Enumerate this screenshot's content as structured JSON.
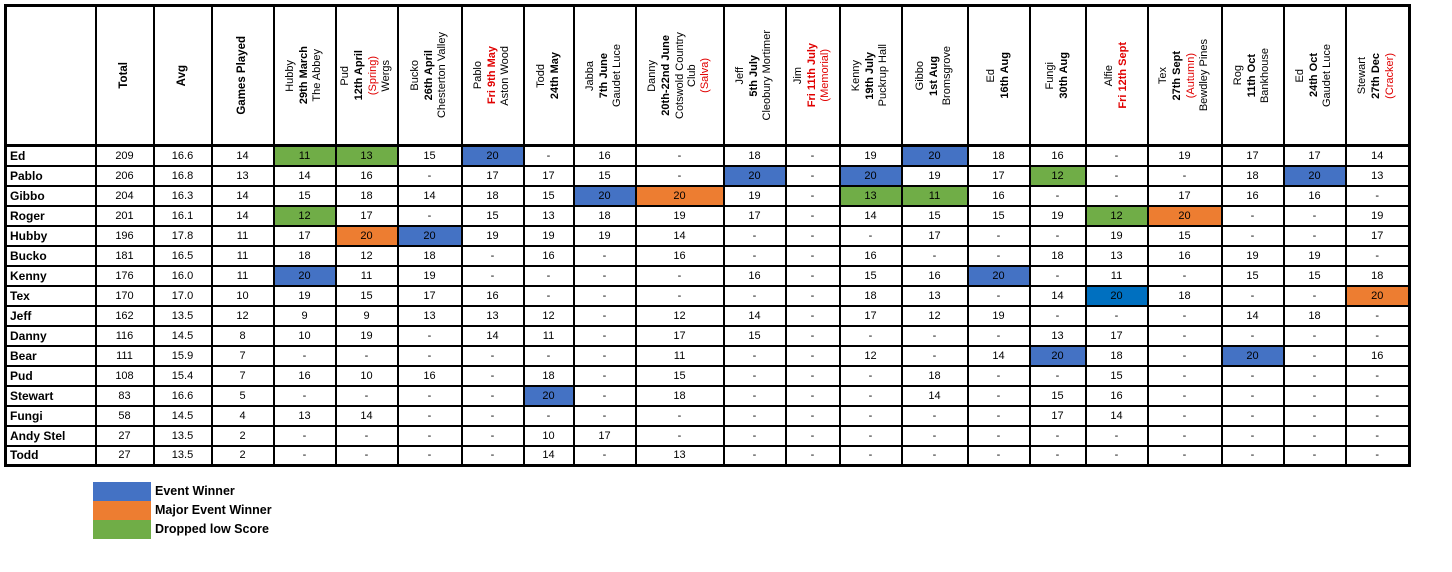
{
  "colors": {
    "blue": "#4472C4",
    "orange": "#ED7D31",
    "green": "#70AD47",
    "bright_blue": "#0070C0",
    "red_text": "#E00000",
    "border": "#000000"
  },
  "table": {
    "corner_label": "",
    "stat_headers": [
      "Total",
      "Avg",
      "Games Played"
    ],
    "event_columns": [
      {
        "lines": [
          {
            "t": "Hubby",
            "s": "name"
          },
          {
            "t": "29th March",
            "s": "date"
          },
          {
            "t": "The Abbey",
            "s": "venue"
          }
        ]
      },
      {
        "lines": [
          {
            "t": "Pud",
            "s": "name"
          },
          {
            "t": "12th April",
            "s": "date"
          },
          {
            "t": "(Spring)",
            "s": "tag"
          },
          {
            "t": "Wergs",
            "s": "venue"
          }
        ]
      },
      {
        "lines": [
          {
            "t": "Bucko",
            "s": "name"
          },
          {
            "t": "26th April",
            "s": "date"
          },
          {
            "t": "Chesterton Valley",
            "s": "venue"
          }
        ]
      },
      {
        "lines": [
          {
            "t": "Pablo",
            "s": "name"
          },
          {
            "t": "Fri 9th May",
            "s": "dateRed"
          },
          {
            "t": "Aston Wood",
            "s": "venue"
          }
        ]
      },
      {
        "lines": [
          {
            "t": "Todd",
            "s": "name"
          },
          {
            "t": "24th May",
            "s": "date"
          }
        ]
      },
      {
        "lines": [
          {
            "t": "Jabba",
            "s": "name"
          },
          {
            "t": "7th June",
            "s": "date"
          },
          {
            "t": "Gaudet Luce",
            "s": "venue"
          }
        ]
      },
      {
        "lines": [
          {
            "t": "Danny",
            "s": "name"
          },
          {
            "t": "20th-22nd June",
            "s": "date"
          },
          {
            "t": "Cotswold Country Club",
            "s": "venue"
          },
          {
            "t": "(Salva)",
            "s": "tag"
          }
        ],
        "wide": true
      },
      {
        "lines": [
          {
            "t": "Jeff",
            "s": "name"
          },
          {
            "t": "5th July",
            "s": "date"
          },
          {
            "t": "Cleobury Mortimer",
            "s": "venue"
          }
        ]
      },
      {
        "lines": [
          {
            "t": "Jim",
            "s": "name"
          },
          {
            "t": "Fri 11th July",
            "s": "dateRed"
          },
          {
            "t": "(Memorial)",
            "s": "tag"
          }
        ]
      },
      {
        "lines": [
          {
            "t": "Kenny",
            "s": "name"
          },
          {
            "t": "19th July",
            "s": "date"
          },
          {
            "t": "Puckrup Hall",
            "s": "venue"
          }
        ]
      },
      {
        "lines": [
          {
            "t": "Gibbo",
            "s": "name"
          },
          {
            "t": "1st Aug",
            "s": "date"
          },
          {
            "t": "Bromsgrove",
            "s": "venue"
          }
        ]
      },
      {
        "lines": [
          {
            "t": "Ed",
            "s": "name"
          },
          {
            "t": "16th Aug",
            "s": "date"
          }
        ]
      },
      {
        "lines": [
          {
            "t": "Fungi",
            "s": "name"
          },
          {
            "t": "30th Aug",
            "s": "date"
          }
        ]
      },
      {
        "lines": [
          {
            "t": "Alfie",
            "s": "name"
          },
          {
            "t": "Fri 12th Sept",
            "s": "dateRed"
          }
        ]
      },
      {
        "lines": [
          {
            "t": "Tex",
            "s": "name"
          },
          {
            "t": "27th Sept",
            "s": "date"
          },
          {
            "t": "(Autumn)",
            "s": "tag"
          },
          {
            "t": "Bewdley Pines",
            "s": "venue"
          }
        ]
      },
      {
        "lines": [
          {
            "t": "Rog",
            "s": "name"
          },
          {
            "t": "11th Oct",
            "s": "date"
          },
          {
            "t": "Bankhouse",
            "s": "venue"
          }
        ]
      },
      {
        "lines": [
          {
            "t": "Ed",
            "s": "name"
          },
          {
            "t": "24th Oct",
            "s": "date"
          },
          {
            "t": "Gaudet Luce",
            "s": "venue"
          }
        ]
      },
      {
        "lines": [
          {
            "t": "Stewart",
            "s": "name"
          },
          {
            "t": "27th Dec",
            "s": "date"
          },
          {
            "t": "(Cracker)",
            "s": "tag"
          }
        ]
      }
    ],
    "highlight_codes": {
      "w": "blue",
      "m": "orange",
      "d": "green",
      "wb": "bright_blue"
    },
    "rows": [
      {
        "player": "Ed",
        "total": "209",
        "avg": "16.6",
        "played": "14",
        "scores": [
          "11|d",
          "13|d",
          "15",
          "20|w",
          "-",
          "16",
          "-",
          "18",
          "-",
          "19",
          "20|w",
          "18",
          "16",
          "-",
          "19",
          "17",
          "17",
          "14"
        ]
      },
      {
        "player": "Pablo",
        "total": "206",
        "avg": "16.8",
        "played": "13",
        "scores": [
          "14",
          "16",
          "-",
          "17",
          "17",
          "15",
          "-",
          "20|w",
          "-",
          "20|w",
          "19",
          "17",
          "12|d",
          "-",
          "-",
          "18",
          "20|w",
          "13"
        ]
      },
      {
        "player": "Gibbo",
        "total": "204",
        "avg": "16.3",
        "played": "14",
        "scores": [
          "15",
          "18",
          "14",
          "18",
          "15",
          "20|w",
          "20|m",
          "19",
          "-",
          "13|d",
          "11|d",
          "16",
          "-",
          "-",
          "17",
          "16",
          "16",
          "-"
        ]
      },
      {
        "player": "Roger",
        "total": "201",
        "avg": "16.1",
        "played": "14",
        "scores": [
          "12|d",
          "17",
          "-",
          "15",
          "13",
          "18",
          "19",
          "17",
          "-",
          "14",
          "15",
          "15",
          "19",
          "12|d",
          "20|m",
          "-",
          "-",
          "19"
        ]
      },
      {
        "player": "Hubby",
        "total": "196",
        "avg": "17.8",
        "played": "11",
        "scores": [
          "17",
          "20|m",
          "20|w",
          "19",
          "19",
          "19",
          "14",
          "-",
          "-",
          "-",
          "17",
          "-",
          "-",
          "19",
          "15",
          "-",
          "-",
          "17"
        ]
      },
      {
        "player": "Bucko",
        "total": "181",
        "avg": "16.5",
        "played": "11",
        "scores": [
          "18",
          "12",
          "18",
          "-",
          "16",
          "-",
          "16",
          "-",
          "-",
          "16",
          "-",
          "-",
          "18",
          "13",
          "16",
          "19",
          "19",
          "-"
        ]
      },
      {
        "player": "Kenny",
        "total": "176",
        "avg": "16.0",
        "played": "11",
        "scores": [
          "20|w",
          "11",
          "19",
          "-",
          "-",
          "-",
          "-",
          "16",
          "-",
          "15",
          "16",
          "20|w",
          "-",
          "11",
          "-",
          "15",
          "15",
          "18"
        ]
      },
      {
        "player": "Tex",
        "total": "170",
        "avg": "17.0",
        "played": "10",
        "scores": [
          "19",
          "15",
          "17",
          "16",
          "-",
          "-",
          "-",
          "-",
          "-",
          "18",
          "13",
          "-",
          "14",
          "20|wb",
          "18",
          "-",
          "-",
          "20|m"
        ]
      },
      {
        "player": "Jeff",
        "total": "162",
        "avg": "13.5",
        "played": "12",
        "scores": [
          "9",
          "9",
          "13",
          "13",
          "12",
          "-",
          "12",
          "14",
          "-",
          "17",
          "12",
          "19",
          "-",
          "-",
          "-",
          "14",
          "18",
          "-"
        ]
      },
      {
        "player": "Danny",
        "total": "116",
        "avg": "14.5",
        "played": "8",
        "scores": [
          "10",
          "19",
          "-",
          "14",
          "11",
          "-",
          "17",
          "15",
          "-",
          "-",
          "-",
          "-",
          "13",
          "17",
          "-",
          "-",
          "-",
          "-"
        ]
      },
      {
        "player": "Bear",
        "total": "111",
        "avg": "15.9",
        "played": "7",
        "scores": [
          "-",
          "-",
          "-",
          "-",
          "-",
          "-",
          "11",
          "-",
          "-",
          "12",
          "-",
          "14",
          "20|w",
          "18",
          "-",
          "20|w",
          "-",
          "16"
        ]
      },
      {
        "player": "Pud",
        "total": "108",
        "avg": "15.4",
        "played": "7",
        "scores": [
          "16",
          "10",
          "16",
          "-",
          "18",
          "-",
          "15",
          "-",
          "-",
          "-",
          "18",
          "-",
          "-",
          "15",
          "-",
          "-",
          "-",
          "-"
        ]
      },
      {
        "player": "Stewart",
        "total": "83",
        "avg": "16.6",
        "played": "5",
        "scores": [
          "-",
          "-",
          "-",
          "-",
          "20|w",
          "-",
          "18",
          "-",
          "-",
          "-",
          "14",
          "-",
          "15",
          "16",
          "-",
          "-",
          "-",
          "-"
        ]
      },
      {
        "player": "Fungi",
        "total": "58",
        "avg": "14.5",
        "played": "4",
        "scores": [
          "13",
          "14",
          "-",
          "-",
          "-",
          "-",
          "-",
          "-",
          "-",
          "-",
          "-",
          "-",
          "17",
          "14",
          "-",
          "-",
          "-",
          "-"
        ]
      },
      {
        "player": "Andy Stel",
        "total": "27",
        "avg": "13.5",
        "played": "2",
        "scores": [
          "-",
          "-",
          "-",
          "-",
          "10",
          "17",
          "-",
          "-",
          "-",
          "-",
          "-",
          "-",
          "-",
          "-",
          "-",
          "-",
          "-",
          "-"
        ]
      },
      {
        "player": "Todd",
        "total": "27",
        "avg": "13.5",
        "played": "2",
        "scores": [
          "-",
          "-",
          "-",
          "-",
          "14",
          "-",
          "13",
          "-",
          "-",
          "-",
          "-",
          "-",
          "-",
          "-",
          "-",
          "-",
          "-",
          "-"
        ]
      }
    ]
  },
  "legend": {
    "items": [
      {
        "label": "Event Winner",
        "color": "#4472C4",
        "key": "event-winner"
      },
      {
        "label": "Major Event Winner",
        "color": "#ED7D31",
        "key": "major-event-winner"
      },
      {
        "label": "Dropped low Score",
        "color": "#70AD47",
        "key": "dropped-low-score"
      }
    ]
  }
}
